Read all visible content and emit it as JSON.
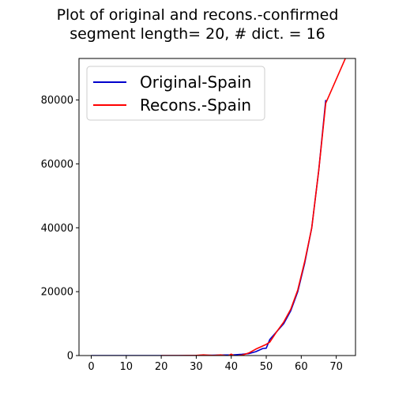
{
  "chart_data": {
    "type": "line",
    "title": "Plot of original and recons.-confirmed",
    "subtitle": "segment length= 20, # dict. = 16",
    "xlim": [
      -3.5,
      75.5
    ],
    "ylim": [
      0,
      93000
    ],
    "xticks": [
      0,
      10,
      20,
      30,
      40,
      50,
      60,
      70
    ],
    "yticks": [
      0,
      20000,
      40000,
      60000,
      80000
    ],
    "legend_position": "top-left",
    "grid": false,
    "series": [
      {
        "name": "Original-Spain",
        "color": "#0000cc",
        "x": [
          0,
          5,
          10,
          15,
          20,
          25,
          30,
          32,
          35,
          38,
          40,
          41,
          43,
          45,
          47,
          49,
          50,
          51,
          53,
          55,
          57,
          59,
          61,
          63,
          65,
          67
        ],
        "y": [
          0,
          0,
          0,
          0,
          0,
          0,
          10,
          50,
          120,
          160,
          180,
          250,
          400,
          600,
          1200,
          2200,
          2300,
          5000,
          7500,
          10000,
          14000,
          20000,
          29000,
          40000,
          58000,
          80000
        ]
      },
      {
        "name": "Recons.-Spain",
        "color": "#ff0000",
        "x": [
          20,
          25,
          30,
          32,
          35,
          37,
          39,
          40,
          41,
          43,
          45,
          47,
          49,
          50,
          51,
          53,
          55,
          57,
          59,
          61,
          63,
          65,
          67,
          69,
          71,
          73
        ],
        "y": [
          0,
          -20,
          50,
          200,
          20,
          200,
          -150,
          450,
          -200,
          100,
          800,
          2000,
          3000,
          3500,
          4200,
          7500,
          10500,
          14500,
          20500,
          29500,
          40000,
          58000,
          79000,
          84000,
          89000,
          94000
        ]
      }
    ]
  }
}
